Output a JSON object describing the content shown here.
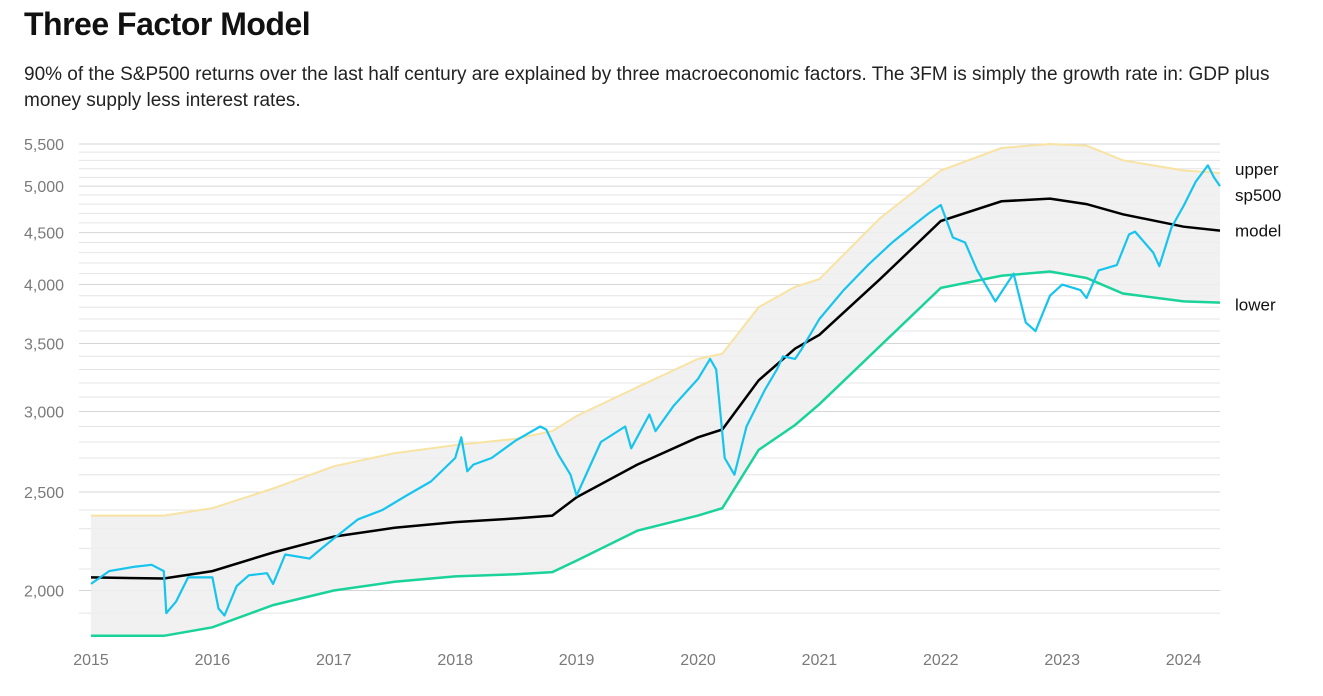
{
  "header": {
    "title": "Three Factor Model",
    "subtitle": "90% of the S&P500 returns over the last half century are explained by three macroeconomic factors. The 3FM is simply the growth rate in: GDP plus money supply less interest rates."
  },
  "colors": {
    "sp500": "#16c4ee",
    "model": "#000000",
    "upper": "#f8e3a3",
    "lower": "#19d39a",
    "band": "#eeeeee",
    "grid": "#e4e4e4"
  },
  "chart_data": {
    "type": "line",
    "title": "Three Factor Model",
    "y_scale": "log",
    "ylim": [
      1800,
      5550
    ],
    "xlim": [
      2015.0,
      2024.3
    ],
    "y_ticks": [
      {
        "value": 2000,
        "label": "2,000"
      },
      {
        "value": 2500,
        "label": "2,500"
      },
      {
        "value": 3000,
        "label": "3,000"
      },
      {
        "value": 3500,
        "label": "3,500"
      },
      {
        "value": 4000,
        "label": "4,000"
      },
      {
        "value": 4500,
        "label": "4,500"
      },
      {
        "value": 5000,
        "label": "5,000"
      },
      {
        "value": 5500,
        "label": "5,500"
      }
    ],
    "x_ticks": [
      {
        "value": 2015,
        "label": "2015"
      },
      {
        "value": 2016,
        "label": "2016"
      },
      {
        "value": 2017,
        "label": "2017"
      },
      {
        "value": 2018,
        "label": "2018"
      },
      {
        "value": 2019,
        "label": "2019"
      },
      {
        "value": 2020,
        "label": "2020"
      },
      {
        "value": 2021,
        "label": "2021"
      },
      {
        "value": 2022,
        "label": "2022"
      },
      {
        "value": 2023,
        "label": "2023"
      },
      {
        "value": 2024,
        "label": "2024"
      }
    ],
    "grid": true,
    "series": [
      {
        "name": "upper",
        "x": [
          2015.0,
          2015.6,
          2016.0,
          2016.5,
          2017.0,
          2017.5,
          2018.0,
          2018.5,
          2018.8,
          2019.0,
          2019.5,
          2020.0,
          2020.2,
          2020.5,
          2020.8,
          2021.0,
          2021.5,
          2022.0,
          2022.5,
          2022.9,
          2023.2,
          2023.5,
          2024.0,
          2024.3
        ],
        "y": [
          2370,
          2370,
          2410,
          2520,
          2650,
          2730,
          2780,
          2820,
          2870,
          2970,
          3170,
          3380,
          3420,
          3800,
          3980,
          4050,
          4650,
          5180,
          5450,
          5500,
          5480,
          5300,
          5180,
          5150
        ]
      },
      {
        "name": "lower",
        "x": [
          2015.0,
          2015.6,
          2016.0,
          2016.5,
          2017.0,
          2017.5,
          2018.0,
          2018.5,
          2018.8,
          2019.0,
          2019.5,
          2020.0,
          2020.2,
          2020.5,
          2020.8,
          2021.0,
          2021.5,
          2022.0,
          2022.5,
          2022.9,
          2023.2,
          2023.5,
          2024.0,
          2024.3
        ],
        "y": [
          1805,
          1805,
          1840,
          1935,
          2000,
          2040,
          2065,
          2075,
          2085,
          2140,
          2290,
          2370,
          2410,
          2750,
          2910,
          3050,
          3480,
          3970,
          4080,
          4120,
          4060,
          3920,
          3850,
          3840
        ]
      },
      {
        "name": "model",
        "x": [
          2015.0,
          2015.6,
          2016.0,
          2016.5,
          2017.0,
          2017.5,
          2018.0,
          2018.5,
          2018.8,
          2019.0,
          2019.5,
          2020.0,
          2020.2,
          2020.5,
          2020.8,
          2021.0,
          2021.5,
          2022.0,
          2022.5,
          2022.9,
          2023.2,
          2023.5,
          2024.0,
          2024.3
        ],
        "y": [
          2060,
          2055,
          2090,
          2180,
          2260,
          2305,
          2335,
          2355,
          2370,
          2470,
          2660,
          2830,
          2880,
          3220,
          3460,
          3570,
          4050,
          4620,
          4830,
          4860,
          4800,
          4690,
          4560,
          4520
        ]
      },
      {
        "name": "sp500",
        "x": [
          2015.0,
          2015.15,
          2015.35,
          2015.5,
          2015.6,
          2015.62,
          2015.7,
          2015.8,
          2016.0,
          2016.05,
          2016.1,
          2016.2,
          2016.3,
          2016.45,
          2016.5,
          2016.6,
          2016.8,
          2016.9,
          2017.0,
          2017.2,
          2017.4,
          2017.6,
          2017.8,
          2018.0,
          2018.05,
          2018.1,
          2018.15,
          2018.3,
          2018.5,
          2018.7,
          2018.75,
          2018.85,
          2018.95,
          2019.0,
          2019.2,
          2019.4,
          2019.45,
          2019.6,
          2019.65,
          2019.8,
          2020.0,
          2020.1,
          2020.15,
          2020.22,
          2020.3,
          2020.4,
          2020.55,
          2020.65,
          2020.7,
          2020.8,
          2020.85,
          2021.0,
          2021.2,
          2021.4,
          2021.6,
          2021.8,
          2021.9,
          2022.0,
          2022.1,
          2022.2,
          2022.3,
          2022.45,
          2022.6,
          2022.7,
          2022.78,
          2022.9,
          2023.0,
          2023.15,
          2023.2,
          2023.3,
          2023.45,
          2023.55,
          2023.6,
          2023.75,
          2023.8,
          2023.9,
          2024.0,
          2024.1,
          2024.2,
          2024.25,
          2024.3
        ],
        "y": [
          2030,
          2090,
          2110,
          2120,
          2090,
          1900,
          1950,
          2060,
          2060,
          1920,
          1890,
          2020,
          2070,
          2080,
          2030,
          2170,
          2150,
          2200,
          2250,
          2350,
          2400,
          2480,
          2560,
          2700,
          2830,
          2620,
          2660,
          2700,
          2810,
          2900,
          2880,
          2720,
          2600,
          2480,
          2800,
          2900,
          2760,
          2980,
          2870,
          3040,
          3230,
          3380,
          3300,
          2700,
          2600,
          2900,
          3150,
          3300,
          3400,
          3380,
          3450,
          3700,
          3950,
          4180,
          4400,
          4600,
          4700,
          4790,
          4450,
          4400,
          4130,
          3850,
          4100,
          3670,
          3600,
          3900,
          4000,
          3950,
          3880,
          4130,
          4180,
          4480,
          4510,
          4300,
          4170,
          4550,
          4780,
          5050,
          5240,
          5100,
          5000
        ]
      }
    ],
    "labels": {
      "upper": "upper",
      "sp500": "sp500",
      "model": "model",
      "lower": "lower"
    }
  }
}
